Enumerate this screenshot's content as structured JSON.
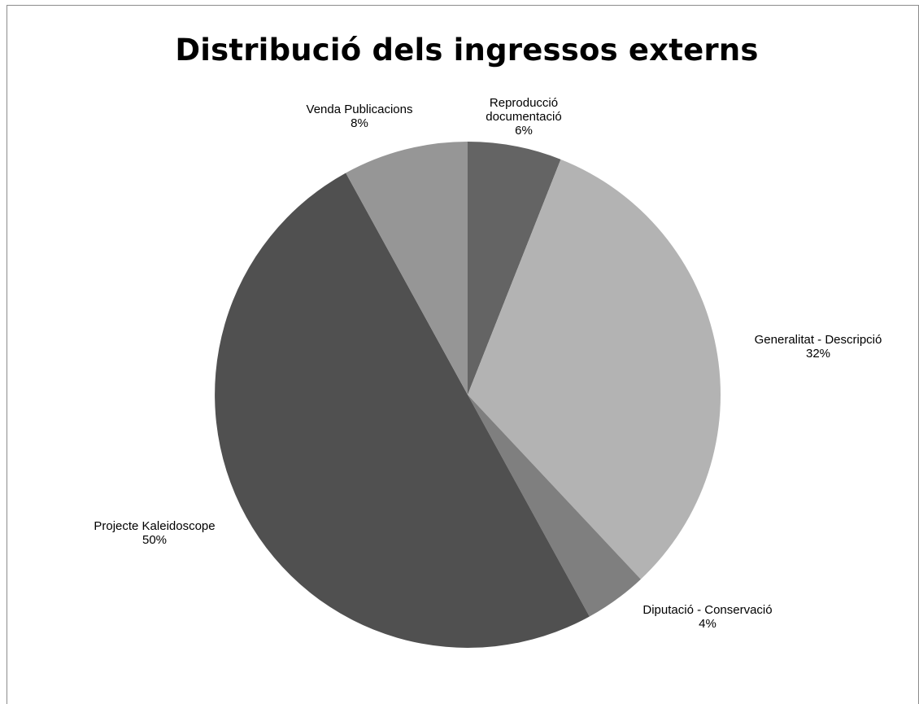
{
  "chart_data": {
    "type": "pie",
    "title": "Distribució dels ingressos externs",
    "slices": [
      {
        "lines": [
          "Reproducció",
          "documentació"
        ],
        "value": 6,
        "pct_label": "6%",
        "color": "#646464"
      },
      {
        "lines": [
          "Generalitat - Descripció"
        ],
        "value": 32,
        "pct_label": "32%",
        "color": "#b3b3b3"
      },
      {
        "lines": [
          "Diputació - Conservació"
        ],
        "value": 4,
        "pct_label": "4%",
        "color": "#7f7f7f"
      },
      {
        "lines": [
          "Projecte Kaleidoscope"
        ],
        "value": 50,
        "pct_label": "50%",
        "color": "#505050"
      },
      {
        "lines": [
          "Venda Publicacions"
        ],
        "value": 8,
        "pct_label": "8%",
        "color": "#969696"
      }
    ],
    "start_angle": "12 o'clock",
    "direction": "clockwise",
    "legend": "none (data labels outside slices)"
  }
}
